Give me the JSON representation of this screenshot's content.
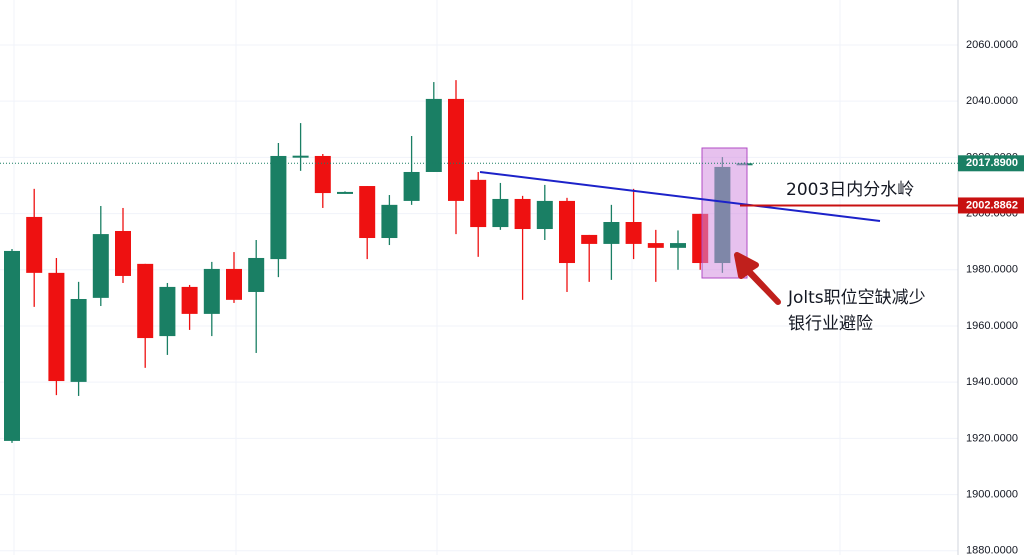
{
  "chart_data": {
    "type": "candlestick",
    "up_color": "#1a7f64",
    "down_color": "#ee1111",
    "series": {
      "open": [
        1919.1,
        1998.8,
        1978.9,
        1940.1,
        1970.0,
        1993.8,
        1982.1,
        1956.4,
        1973.9,
        1964.3,
        1980.3,
        1972.1,
        1983.8,
        2020.3,
        2020.5,
        2007.5,
        2009.8,
        1991.3,
        2004.5,
        2014.8,
        2040.8,
        2012.0,
        1995.2,
        2005.2,
        1994.5,
        2004.5,
        1992.4,
        1989.2,
        1997.0,
        1989.5,
        1987.8,
        1999.9,
        1982.4,
        2017.6
      ],
      "high": [
        1987.4,
        2008.8,
        1984.2,
        1975.7,
        2002.7,
        2002.0,
        1982.1,
        1975.3,
        1974.6,
        1982.8,
        1986.3,
        1990.6,
        2025.1,
        2032.2,
        2021.2,
        2007.9,
        2009.8,
        2006.6,
        2027.6,
        2046.8,
        2047.5,
        2014.8,
        2010.9,
        2006.3,
        2010.2,
        2005.6,
        1992.4,
        2003.1,
        2008.8,
        1994.2,
        1994.0,
        1999.9,
        2020.1,
        2018.3
      ],
      "low": [
        1918.4,
        1966.8,
        1935.4,
        1935.1,
        1967.1,
        1975.3,
        1945.1,
        1949.7,
        1958.6,
        1956.4,
        1968.2,
        1950.4,
        1977.4,
        2015.2,
        2002.0,
        2007.3,
        1983.8,
        1988.8,
        2003.1,
        2014.8,
        1992.7,
        1984.6,
        1994.2,
        1969.3,
        1990.6,
        1972.1,
        1975.7,
        1976.4,
        1983.8,
        1975.7,
        1980.0,
        1980.0,
        1978.9,
        2017.4
      ],
      "close": [
        1986.7,
        1978.9,
        1940.4,
        1969.6,
        1992.7,
        1977.8,
        1955.7,
        1973.9,
        1964.3,
        1980.3,
        1969.3,
        1984.2,
        2020.5,
        2020.6,
        2007.3,
        2007.7,
        1991.3,
        2003.1,
        2014.8,
        2040.8,
        2004.5,
        1995.2,
        2005.2,
        1994.5,
        2004.5,
        1982.4,
        1989.2,
        1997.0,
        1989.2,
        1987.8,
        1989.5,
        1982.4,
        2016.6,
        2017.89
      ]
    },
    "ylim": [
      1878.5,
      2076.0
    ],
    "yticks": [
      {
        "value": 1880,
        "label": "1880.0000"
      },
      {
        "value": 1900,
        "label": "1900.0000"
      },
      {
        "value": 1920,
        "label": "1920.0000"
      },
      {
        "value": 1940,
        "label": "1940.0000"
      },
      {
        "value": 1960,
        "label": "1960.0000"
      },
      {
        "value": 1980,
        "label": "1980.0000"
      },
      {
        "value": 2000,
        "label": "2000.0000"
      },
      {
        "value": 2020,
        "label": "2020.0000"
      },
      {
        "value": 2040,
        "label": "2040.0000"
      },
      {
        "value": 2060,
        "label": "2060.0000"
      }
    ],
    "grid": true,
    "price_labels": [
      {
        "value": 2017.89,
        "label": "2017.8900",
        "color": "#1a7f64",
        "line": "dotted"
      },
      {
        "value": 2002.8862,
        "label": "2002.8862",
        "color": "#c81010",
        "line": "solid"
      }
    ],
    "annotations": [
      "2003日内分水岭",
      "Jolts职位空缺减少",
      "银行业避险"
    ]
  }
}
